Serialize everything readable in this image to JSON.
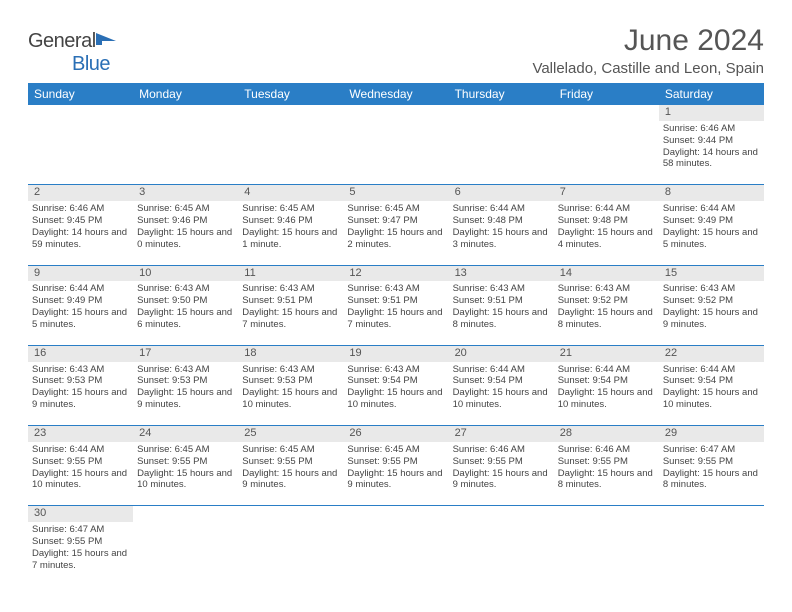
{
  "brand": {
    "name_a": "General",
    "name_b": "Blue"
  },
  "title": "June 2024",
  "location": "Vallelado, Castille and Leon, Spain",
  "colors": {
    "header_bg": "#2a7ec6",
    "header_text": "#ffffff",
    "daynum_bg": "#e9e9e9",
    "rule": "#2a7ec6",
    "text": "#444444",
    "logo_blue": "#2a6fb5"
  },
  "typography": {
    "title_fontsize": 30,
    "location_fontsize": 15,
    "header_fontsize": 12,
    "cell_fontsize": 9.5,
    "logo_fontsize": 20
  },
  "weekdays": [
    "Sunday",
    "Monday",
    "Tuesday",
    "Wednesday",
    "Thursday",
    "Friday",
    "Saturday"
  ],
  "weeks": [
    [
      null,
      null,
      null,
      null,
      null,
      null,
      {
        "n": "1",
        "sr": "Sunrise: 6:46 AM",
        "ss": "Sunset: 9:44 PM",
        "dl": "Daylight: 14 hours and 58 minutes."
      }
    ],
    [
      {
        "n": "2",
        "sr": "Sunrise: 6:46 AM",
        "ss": "Sunset: 9:45 PM",
        "dl": "Daylight: 14 hours and 59 minutes."
      },
      {
        "n": "3",
        "sr": "Sunrise: 6:45 AM",
        "ss": "Sunset: 9:46 PM",
        "dl": "Daylight: 15 hours and 0 minutes."
      },
      {
        "n": "4",
        "sr": "Sunrise: 6:45 AM",
        "ss": "Sunset: 9:46 PM",
        "dl": "Daylight: 15 hours and 1 minute."
      },
      {
        "n": "5",
        "sr": "Sunrise: 6:45 AM",
        "ss": "Sunset: 9:47 PM",
        "dl": "Daylight: 15 hours and 2 minutes."
      },
      {
        "n": "6",
        "sr": "Sunrise: 6:44 AM",
        "ss": "Sunset: 9:48 PM",
        "dl": "Daylight: 15 hours and 3 minutes."
      },
      {
        "n": "7",
        "sr": "Sunrise: 6:44 AM",
        "ss": "Sunset: 9:48 PM",
        "dl": "Daylight: 15 hours and 4 minutes."
      },
      {
        "n": "8",
        "sr": "Sunrise: 6:44 AM",
        "ss": "Sunset: 9:49 PM",
        "dl": "Daylight: 15 hours and 5 minutes."
      }
    ],
    [
      {
        "n": "9",
        "sr": "Sunrise: 6:44 AM",
        "ss": "Sunset: 9:49 PM",
        "dl": "Daylight: 15 hours and 5 minutes."
      },
      {
        "n": "10",
        "sr": "Sunrise: 6:43 AM",
        "ss": "Sunset: 9:50 PM",
        "dl": "Daylight: 15 hours and 6 minutes."
      },
      {
        "n": "11",
        "sr": "Sunrise: 6:43 AM",
        "ss": "Sunset: 9:51 PM",
        "dl": "Daylight: 15 hours and 7 minutes."
      },
      {
        "n": "12",
        "sr": "Sunrise: 6:43 AM",
        "ss": "Sunset: 9:51 PM",
        "dl": "Daylight: 15 hours and 7 minutes."
      },
      {
        "n": "13",
        "sr": "Sunrise: 6:43 AM",
        "ss": "Sunset: 9:51 PM",
        "dl": "Daylight: 15 hours and 8 minutes."
      },
      {
        "n": "14",
        "sr": "Sunrise: 6:43 AM",
        "ss": "Sunset: 9:52 PM",
        "dl": "Daylight: 15 hours and 8 minutes."
      },
      {
        "n": "15",
        "sr": "Sunrise: 6:43 AM",
        "ss": "Sunset: 9:52 PM",
        "dl": "Daylight: 15 hours and 9 minutes."
      }
    ],
    [
      {
        "n": "16",
        "sr": "Sunrise: 6:43 AM",
        "ss": "Sunset: 9:53 PM",
        "dl": "Daylight: 15 hours and 9 minutes."
      },
      {
        "n": "17",
        "sr": "Sunrise: 6:43 AM",
        "ss": "Sunset: 9:53 PM",
        "dl": "Daylight: 15 hours and 9 minutes."
      },
      {
        "n": "18",
        "sr": "Sunrise: 6:43 AM",
        "ss": "Sunset: 9:53 PM",
        "dl": "Daylight: 15 hours and 10 minutes."
      },
      {
        "n": "19",
        "sr": "Sunrise: 6:43 AM",
        "ss": "Sunset: 9:54 PM",
        "dl": "Daylight: 15 hours and 10 minutes."
      },
      {
        "n": "20",
        "sr": "Sunrise: 6:44 AM",
        "ss": "Sunset: 9:54 PM",
        "dl": "Daylight: 15 hours and 10 minutes."
      },
      {
        "n": "21",
        "sr": "Sunrise: 6:44 AM",
        "ss": "Sunset: 9:54 PM",
        "dl": "Daylight: 15 hours and 10 minutes."
      },
      {
        "n": "22",
        "sr": "Sunrise: 6:44 AM",
        "ss": "Sunset: 9:54 PM",
        "dl": "Daylight: 15 hours and 10 minutes."
      }
    ],
    [
      {
        "n": "23",
        "sr": "Sunrise: 6:44 AM",
        "ss": "Sunset: 9:55 PM",
        "dl": "Daylight: 15 hours and 10 minutes."
      },
      {
        "n": "24",
        "sr": "Sunrise: 6:45 AM",
        "ss": "Sunset: 9:55 PM",
        "dl": "Daylight: 15 hours and 10 minutes."
      },
      {
        "n": "25",
        "sr": "Sunrise: 6:45 AM",
        "ss": "Sunset: 9:55 PM",
        "dl": "Daylight: 15 hours and 9 minutes."
      },
      {
        "n": "26",
        "sr": "Sunrise: 6:45 AM",
        "ss": "Sunset: 9:55 PM",
        "dl": "Daylight: 15 hours and 9 minutes."
      },
      {
        "n": "27",
        "sr": "Sunrise: 6:46 AM",
        "ss": "Sunset: 9:55 PM",
        "dl": "Daylight: 15 hours and 9 minutes."
      },
      {
        "n": "28",
        "sr": "Sunrise: 6:46 AM",
        "ss": "Sunset: 9:55 PM",
        "dl": "Daylight: 15 hours and 8 minutes."
      },
      {
        "n": "29",
        "sr": "Sunrise: 6:47 AM",
        "ss": "Sunset: 9:55 PM",
        "dl": "Daylight: 15 hours and 8 minutes."
      }
    ],
    [
      {
        "n": "30",
        "sr": "Sunrise: 6:47 AM",
        "ss": "Sunset: 9:55 PM",
        "dl": "Daylight: 15 hours and 7 minutes."
      },
      null,
      null,
      null,
      null,
      null,
      null
    ]
  ]
}
